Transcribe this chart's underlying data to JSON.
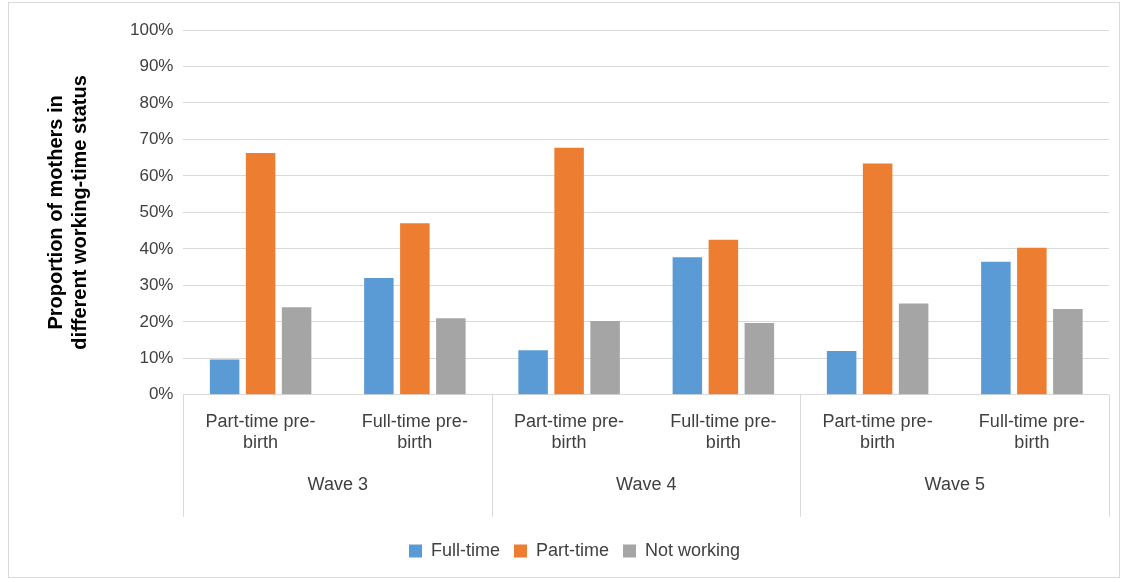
{
  "chart_data": {
    "type": "bar",
    "ylabel": "Proportion of mothers in different working-time status",
    "categories": [
      "Part-time pre-birth",
      "Full-time pre-birth",
      "Part-time pre-birth",
      "Full-time pre-birth",
      "Part-time pre-birth",
      "Full-time pre-birth"
    ],
    "series": [
      {
        "name": "Full-time",
        "color": "#5b9bd5",
        "values": [
          9.7,
          32,
          12.2,
          37.7,
          12,
          36.5
        ]
      },
      {
        "name": "Part-time",
        "color": "#ed7d31",
        "values": [
          66.3,
          47,
          67.7,
          42.5,
          63.4,
          40.3
        ]
      },
      {
        "name": "Not working",
        "color": "#a5a5a5",
        "values": [
          24,
          21,
          20.2,
          19.7,
          25,
          23.5
        ]
      }
    ],
    "annotations": [
      "Wave 3",
      "Wave 4",
      "Wave 5"
    ],
    "ylim": [
      0,
      100
    ],
    "yticks": [
      {
        "value": 0,
        "label": "0%"
      },
      {
        "value": 10,
        "label": "10%"
      },
      {
        "value": 20,
        "label": "20%"
      },
      {
        "value": 30,
        "label": "30%"
      },
      {
        "value": 40,
        "label": "40%"
      },
      {
        "value": 50,
        "label": "50%"
      },
      {
        "value": 60,
        "label": "60%"
      },
      {
        "value": 70,
        "label": "70%"
      },
      {
        "value": 80,
        "label": "80%"
      },
      {
        "value": 90,
        "label": "90%"
      },
      {
        "value": 100,
        "label": "100%"
      }
    ],
    "grid": "y",
    "legend": "bottom"
  }
}
